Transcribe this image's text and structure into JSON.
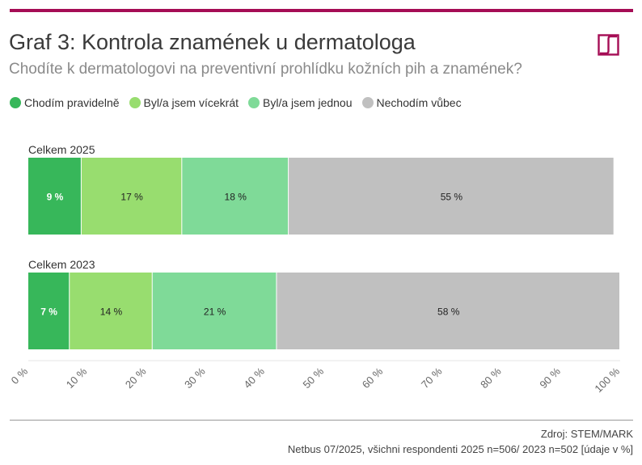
{
  "header": {
    "title": "Graf 3: Kontrola znamének u dermatologa",
    "subtitle": "Chodíte k dermatologovi na preventivní prohlídku kožních pih a znamének?",
    "accent_color": "#a50d55",
    "logo_icon": "stem-mark-logo-icon"
  },
  "footer": {
    "source": "Zdroj: STEM/MARK",
    "note": "Netbus 07/2025, všichni respondenti 2025 n=506/ 2023 n=502 [údaje v %]"
  },
  "chart_data": {
    "type": "bar",
    "orientation": "horizontal",
    "stacked": true,
    "categories": [
      "Celkem 2025",
      "Celkem 2023"
    ],
    "series": [
      {
        "name": "Chodím pravidelně",
        "color": "#37b75a",
        "values": [
          9,
          7
        ],
        "labels": [
          "9 %",
          "7 %"
        ],
        "label_color": "#ffffff"
      },
      {
        "name": "Byl/a jsem vícekrát",
        "color": "#98dd6f",
        "values": [
          17,
          14
        ],
        "labels": [
          "17 %",
          "14 %"
        ],
        "label_color": "#222222"
      },
      {
        "name": "Byl/a jsem jednou",
        "color": "#7fda98",
        "values": [
          18,
          21
        ],
        "labels": [
          "18 %",
          "21 %"
        ],
        "label_color": "#222222"
      },
      {
        "name": "Nechodím vůbec",
        "color": "#c0c0c0",
        "values": [
          55,
          58
        ],
        "labels": [
          "55 %",
          "58 %"
        ],
        "label_color": "#222222"
      }
    ],
    "xlim": [
      0,
      100
    ],
    "x_ticks": [
      0,
      10,
      20,
      30,
      40,
      50,
      60,
      70,
      80,
      90,
      100
    ],
    "x_tick_labels": [
      "0 %",
      "10 %",
      "20 %",
      "30 %",
      "40 %",
      "50 %",
      "60 %",
      "70 %",
      "80 %",
      "90 %",
      "100 %"
    ],
    "grid": false,
    "legend_position": "top-left"
  }
}
